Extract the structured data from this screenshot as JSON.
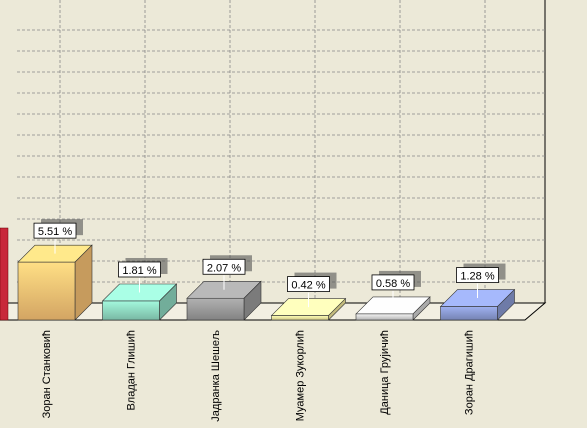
{
  "chart_data": {
    "type": "bar3d",
    "categories": [
      "Зоран Станковић",
      "Владан Глишић",
      "Јадранка Шешељ",
      "Муамер Зукорлић",
      "Даница Грујичић",
      "Зоран Драгишић"
    ],
    "values": [
      5.51,
      1.81,
      2.07,
      0.42,
      0.58,
      1.28
    ],
    "value_labels": [
      "5.51 %",
      "1.81 %",
      "2.07 %",
      "0.42 %",
      "0.58 %",
      "1.28 %"
    ],
    "colors": [
      "#f8c274",
      "#8ed8c0",
      "#9a9a9a",
      "#f4ea9e",
      "#d4d4d4",
      "#8a9ad2"
    ],
    "ylim": [
      0,
      28
    ],
    "yticks": [
      2,
      4,
      6,
      8,
      10,
      12,
      14,
      16,
      18,
      20,
      22,
      24,
      26
    ],
    "grid": true
  }
}
